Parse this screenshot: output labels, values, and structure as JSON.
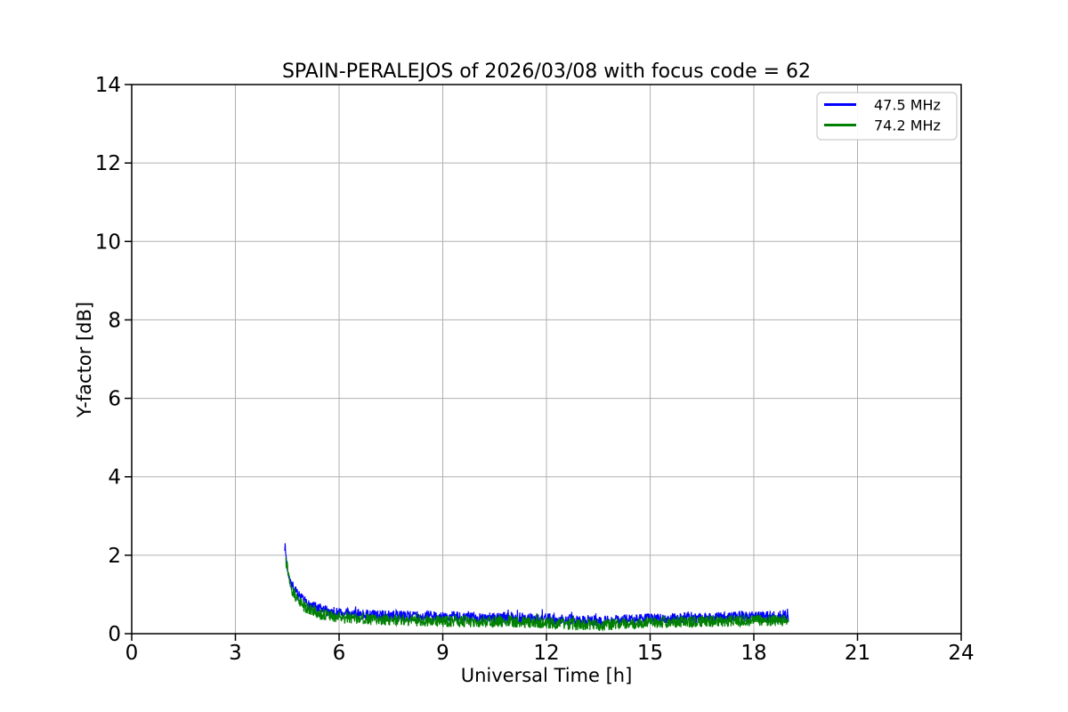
{
  "chart_data": {
    "type": "line",
    "title": "SPAIN-PERALEJOS of 2026/03/08 with focus code = 62",
    "xlabel": "Universal Time [h]",
    "ylabel": "Y-factor [dB]",
    "xlim": [
      0,
      24
    ],
    "ylim": [
      0,
      14
    ],
    "xticks": [
      0,
      3,
      6,
      9,
      12,
      15,
      18,
      21,
      24
    ],
    "yticks": [
      0,
      2,
      4,
      6,
      8,
      10,
      12,
      14
    ],
    "grid": true,
    "legend_position": "upper right",
    "colors": {
      "background": "#ffffff",
      "grid": "#b0b0b0",
      "spine": "#000000",
      "legend_border": "#cccccc",
      "text": "#000000"
    },
    "series": [
      {
        "name": "47.5 MHz",
        "color": "#0000ff",
        "x_start": 4.43,
        "x_end": 19.0,
        "noise_amplitude": 0.14,
        "seed": 7,
        "control_points": {
          "x": [
            4.43,
            4.5,
            4.6,
            4.75,
            4.9,
            5.1,
            5.4,
            5.8,
            6.3,
            7.0,
            8.0,
            9.0,
            10.0,
            11.0,
            12.0,
            12.8,
            13.5,
            14.2,
            15.0,
            16.0,
            17.0,
            18.0,
            18.6,
            19.0
          ],
          "y": [
            2.25,
            1.7,
            1.3,
            1.05,
            0.88,
            0.75,
            0.63,
            0.55,
            0.5,
            0.47,
            0.45,
            0.43,
            0.42,
            0.41,
            0.38,
            0.34,
            0.33,
            0.35,
            0.38,
            0.41,
            0.42,
            0.44,
            0.45,
            0.44
          ]
        }
      },
      {
        "name": "74.2 MHz",
        "color": "#008000",
        "x_start": 4.46,
        "x_end": 19.0,
        "noise_amplitude": 0.15,
        "seed": 13,
        "control_points": {
          "x": [
            4.46,
            4.55,
            4.65,
            4.8,
            4.95,
            5.15,
            5.45,
            5.85,
            6.3,
            7.0,
            8.0,
            9.0,
            10.0,
            11.0,
            12.0,
            12.8,
            13.5,
            14.2,
            15.0,
            16.0,
            17.0,
            18.0,
            18.6,
            19.0
          ],
          "y": [
            1.93,
            1.45,
            1.1,
            0.88,
            0.72,
            0.6,
            0.5,
            0.43,
            0.39,
            0.36,
            0.34,
            0.32,
            0.31,
            0.3,
            0.28,
            0.24,
            0.23,
            0.25,
            0.28,
            0.31,
            0.32,
            0.33,
            0.34,
            0.33
          ]
        }
      }
    ]
  }
}
